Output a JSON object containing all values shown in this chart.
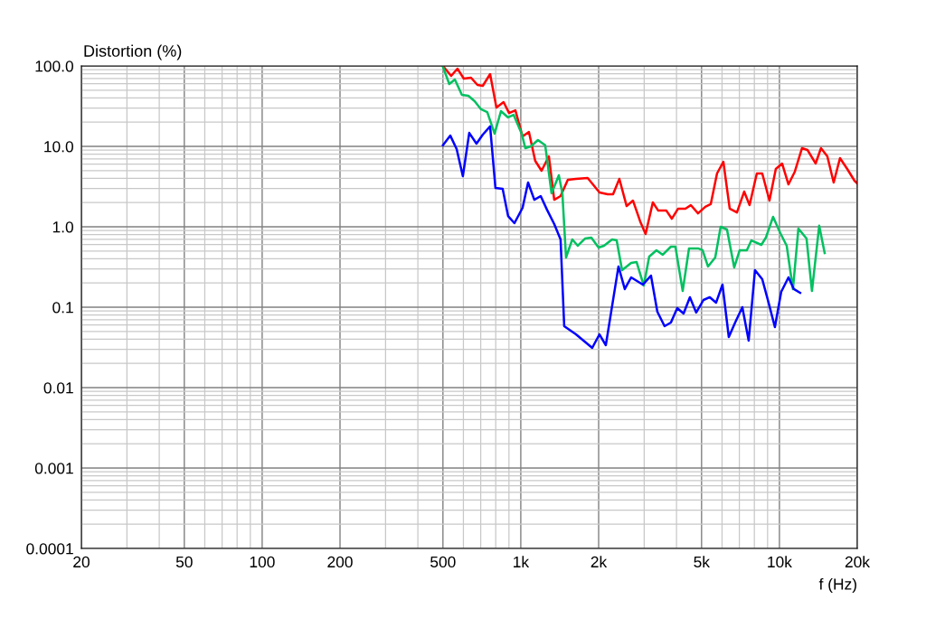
{
  "chart_data": {
    "type": "line",
    "ylabel": "Distortion (%)",
    "xlabel": "f (Hz)",
    "log": "xy",
    "grid": true,
    "marker": "none",
    "line_style": "solid",
    "xlim": [
      20,
      20000
    ],
    "ylim": [
      0.0001,
      100
    ],
    "xticks": [
      20,
      50,
      100,
      200,
      500,
      {
        "value": 1000,
        "label": "1k"
      },
      {
        "value": 2000,
        "label": "2k"
      },
      {
        "value": 5000,
        "label": "5k"
      },
      {
        "value": 10000,
        "label": "10k"
      },
      {
        "value": 20000,
        "label": "20k"
      }
    ],
    "yticks": [
      0.0001,
      0.001,
      0.01,
      0.1,
      {
        "value": 1,
        "label": "1.0"
      },
      {
        "value": 10,
        "label": "10.0"
      },
      {
        "value": 100,
        "label": "100.0"
      }
    ],
    "series": [
      {
        "color": "#ff0000",
        "x": [
          500,
          538,
          569,
          602,
          642,
          680,
          713,
          761,
          805,
          858,
          901,
          953,
          1016,
          1075,
          1137,
          1203,
          1284,
          1347,
          1425,
          1520,
          1634,
          1814,
          2015,
          2166,
          2274,
          2405,
          2566,
          2714,
          2894,
          3038,
          3240,
          3400,
          3655,
          3836,
          4058,
          4329,
          4544,
          4846,
          5169,
          5425,
          5738,
          6071,
          6424,
          6851,
          7305,
          7666,
          8177,
          8583,
          9152,
          9683,
          10240,
          10840,
          11470,
          12230,
          12840,
          13800,
          14480,
          15320,
          16210,
          17150,
          18290,
          19510,
          20000
        ],
        "values": [
          100,
          75.2,
          92.5,
          69.6,
          71.4,
          58.1,
          56.6,
          79.2,
          30.4,
          35.5,
          26.0,
          28.1,
          13.3,
          15.1,
          6.61,
          4.97,
          7.52,
          2.17,
          2.41,
          3.84,
          3.94,
          4.04,
          2.67,
          2.54,
          2.54,
          3.94,
          1.81,
          2.12,
          1.17,
          0.813,
          2.01,
          1.59,
          1.59,
          1.26,
          1.68,
          1.68,
          1.86,
          1.47,
          1.77,
          1.91,
          4.6,
          6.44,
          1.68,
          1.51,
          2.74,
          1.86,
          4.6,
          4.6,
          2.12,
          5.24,
          6.12,
          3.37,
          4.85,
          9.5,
          9.02,
          6.12,
          9.5,
          7.52,
          3.55,
          7.14,
          5.24,
          3.74,
          3.46
        ]
      },
      {
        "color": "#00c060",
        "x": [
          500,
          529,
          556,
          592,
          627,
          663,
          702,
          742,
          792,
          838,
          893,
          938,
          1008,
          1041,
          1093,
          1165,
          1243,
          1315,
          1403,
          1448,
          1496,
          1582,
          1661,
          1771,
          1874,
          1999,
          2097,
          2255,
          2348,
          2464,
          2671,
          2803,
          2989,
          3137,
          3346,
          3540,
          3805,
          3962,
          4226,
          4471,
          4846,
          5045,
          5294,
          5647,
          5926,
          6270,
          6686,
          7019,
          7483,
          7792,
          8514,
          8864,
          9452,
          10080,
          10670,
          11280,
          11840,
          12730,
          13360,
          14250,
          14960
        ],
        "values": [
          97.5,
          59.6,
          67.8,
          43.7,
          42.6,
          36.5,
          28.9,
          26.7,
          14.4,
          27.4,
          22.9,
          24.7,
          14.4,
          9.5,
          10.0,
          12.0,
          10.3,
          2.61,
          4.37,
          2.61,
          0.415,
          0.697,
          0.581,
          0.714,
          0.733,
          0.552,
          0.581,
          0.697,
          0.678,
          0.289,
          0.355,
          0.365,
          0.186,
          0.426,
          0.511,
          0.449,
          0.566,
          0.566,
          0.159,
          0.538,
          0.538,
          0.511,
          0.321,
          0.415,
          1.0,
          0.925,
          0.312,
          0.511,
          0.511,
          0.678,
          0.596,
          0.733,
          1.33,
          0.834,
          0.581,
          0.168,
          0.95,
          0.714,
          0.159,
          1.03,
          0.472
        ]
      },
      {
        "color": "#0000ff",
        "x": [
          500,
          534,
          565,
          597,
          632,
          674,
          713,
          761,
          798,
          851,
          893,
          945,
          1016,
          1067,
          1128,
          1194,
          1263,
          1347,
          1425,
          1472,
          1634,
          1889,
          2015,
          2132,
          2386,
          2524,
          2671,
          2965,
          3187,
          3373,
          3597,
          3805,
          4026,
          4260,
          4507,
          4768,
          5086,
          5381,
          5692,
          6023,
          6372,
          6742,
          7189,
          7605,
          8045,
          8583,
          9078,
          9605,
          10160,
          10840,
          11370,
          12030
        ],
        "values": [
          10.3,
          13.6,
          9.25,
          4.26,
          14.7,
          10.8,
          14.0,
          17.7,
          3.04,
          2.96,
          1.36,
          1.11,
          1.72,
          3.55,
          2.17,
          2.41,
          1.63,
          1.08,
          0.697,
          0.0581,
          0.046,
          0.0312,
          0.046,
          0.0337,
          0.321,
          0.168,
          0.235,
          0.191,
          0.247,
          0.0879,
          0.0581,
          0.0644,
          0.0975,
          0.0834,
          0.133,
          0.0857,
          0.123,
          0.133,
          0.114,
          0.191,
          0.0426,
          0.0644,
          0.1,
          0.0384,
          0.289,
          0.223,
          0.114,
          0.0566,
          0.155,
          0.235,
          0.168,
          0.151
        ]
      }
    ]
  }
}
